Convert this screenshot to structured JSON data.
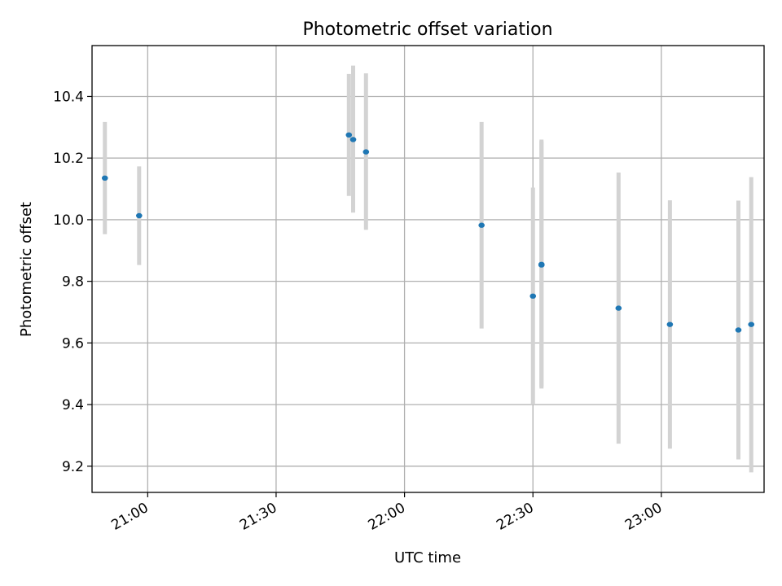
{
  "chart_data": {
    "type": "scatter",
    "title": "Photometric offset variation",
    "xlabel": "UTC time",
    "ylabel": "Photometric offset",
    "x_ticks": [
      "21:00",
      "21:30",
      "22:00",
      "22:30",
      "23:00"
    ],
    "y_ticks": [
      "9.2",
      "9.4",
      "9.6",
      "9.8",
      "10.0",
      "10.2",
      "10.4"
    ],
    "xlim": [
      "20:47",
      "23:24"
    ],
    "ylim": [
      9.115,
      10.565
    ],
    "grid": true,
    "colors": {
      "points": "#1f77b4",
      "error_bars": "#d3d3d3",
      "grid": "#b0b0b0"
    },
    "points": [
      {
        "time": "20:50",
        "y": 10.135,
        "err_low": 9.953,
        "err_high": 10.317
      },
      {
        "time": "20:58",
        "y": 10.013,
        "err_low": 9.853,
        "err_high": 10.173
      },
      {
        "time": "21:47",
        "y": 10.275,
        "err_low": 10.077,
        "err_high": 10.473
      },
      {
        "time": "21:48",
        "y": 10.26,
        "err_low": 10.023,
        "err_high": 10.5
      },
      {
        "time": "21:51",
        "y": 10.22,
        "err_low": 9.967,
        "err_high": 10.475
      },
      {
        "time": "22:18",
        "y": 9.982,
        "err_low": 9.647,
        "err_high": 10.317
      },
      {
        "time": "22:30",
        "y": 9.752,
        "err_low": 9.4,
        "err_high": 10.104
      },
      {
        "time": "22:32",
        "y": 9.853,
        "err_low": 9.452,
        "err_high": 10.255
      },
      {
        "time": "22:32",
        "y": 9.855,
        "err_low": 9.458,
        "err_high": 10.26
      },
      {
        "time": "22:50",
        "y": 9.713,
        "err_low": 9.273,
        "err_high": 10.153
      },
      {
        "time": "23:02",
        "y": 9.66,
        "err_low": 9.257,
        "err_high": 10.063
      },
      {
        "time": "23:18",
        "y": 9.642,
        "err_low": 9.222,
        "err_high": 10.062
      },
      {
        "time": "23:21",
        "y": 9.66,
        "err_low": 9.18,
        "err_high": 10.138
      }
    ]
  }
}
